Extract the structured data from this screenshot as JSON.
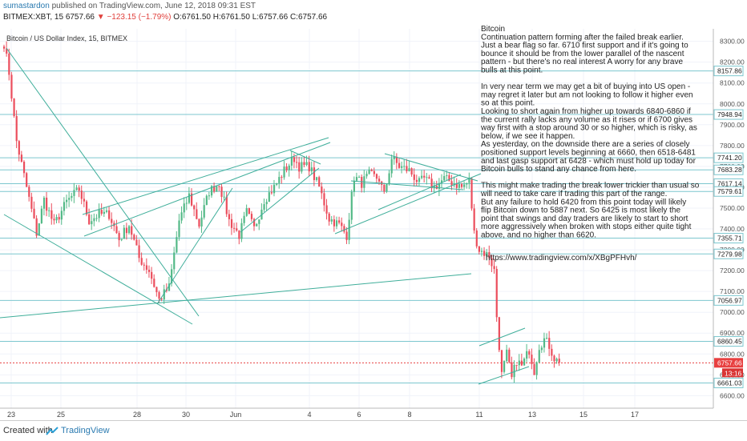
{
  "header": {
    "author": "sumastardon",
    "published": " published on TradingView.com, June 12, 2018 09:31 EST",
    "symbol": "BITMEX:XBT, 15",
    "last": "6757.66",
    "change": "−123.15 (−1.79%)",
    "ohlc": "O:6761.50 H:6761.50 L:6757.66 C:6757.66"
  },
  "footer": {
    "created": "Created with",
    "brand": "TradingView"
  },
  "chart_data": {
    "type": "candlestick",
    "title": "Bitcoin / US Dollar Index, 15, BITMEX",
    "ylim": [
      6540,
      8360
    ],
    "y_ticks": [
      8300,
      8200,
      8100,
      8000,
      7900,
      7800,
      7700,
      7600,
      7500,
      7400,
      7300,
      7200,
      7100,
      7000,
      6900,
      6800,
      6700,
      6600
    ],
    "x_ticks": [
      "23",
      "25",
      "28",
      "30",
      "Jun",
      "4",
      "6",
      "8",
      "11",
      "13",
      "15",
      "17"
    ],
    "horizontal_levels": [
      8157.86,
      7948.94,
      7741.2,
      7683.28,
      7617.14,
      7579.61,
      7355.71,
      7279.98,
      7056.97,
      6860.45,
      6661.03
    ],
    "current_price": 6757.66,
    "countdown": "13:16",
    "path_anchors": [
      [
        0,
        8290
      ],
      [
        2,
        8150
      ],
      [
        5,
        7820
      ],
      [
        9,
        7600
      ],
      [
        13,
        7380
      ],
      [
        16,
        7540
      ],
      [
        20,
        7420
      ],
      [
        25,
        7530
      ],
      [
        30,
        7590
      ],
      [
        34,
        7440
      ],
      [
        38,
        7470
      ],
      [
        42,
        7470
      ],
      [
        46,
        7350
      ],
      [
        50,
        7420
      ],
      [
        54,
        7260
      ],
      [
        58,
        7200
      ],
      [
        62,
        7060
      ],
      [
        66,
        7120
      ],
      [
        70,
        7440
      ],
      [
        74,
        7560
      ],
      [
        78,
        7420
      ],
      [
        82,
        7580
      ],
      [
        86,
        7620
      ],
      [
        90,
        7440
      ],
      [
        94,
        7370
      ],
      [
        97,
        7480
      ],
      [
        100,
        7400
      ],
      [
        104,
        7540
      ],
      [
        108,
        7600
      ],
      [
        112,
        7680
      ],
      [
        116,
        7740
      ],
      [
        118,
        7700
      ],
      [
        122,
        7700
      ],
      [
        126,
        7600
      ],
      [
        130,
        7450
      ],
      [
        134,
        7420
      ],
      [
        137,
        7370
      ],
      [
        140,
        7650
      ],
      [
        143,
        7620
      ],
      [
        146,
        7660
      ],
      [
        150,
        7640
      ],
      [
        152,
        7560
      ],
      [
        155,
        7740
      ],
      [
        158,
        7700
      ],
      [
        162,
        7680
      ],
      [
        166,
        7620
      ],
      [
        168,
        7640
      ],
      [
        172,
        7600
      ],
      [
        176,
        7640
      ],
      [
        180,
        7620
      ],
      [
        183,
        7600
      ],
      [
        186,
        7630
      ],
      [
        188,
        7380
      ],
      [
        190,
        7300
      ],
      [
        194,
        7270
      ],
      [
        196,
        7200
      ],
      [
        197,
        6980
      ],
      [
        199,
        6700
      ],
      [
        201,
        6800
      ],
      [
        203,
        6680
      ],
      [
        205,
        6770
      ],
      [
        207,
        6740
      ],
      [
        210,
        6820
      ],
      [
        212,
        6720
      ],
      [
        214,
        6840
      ],
      [
        216,
        6870
      ],
      [
        218,
        6840
      ],
      [
        220,
        6780
      ],
      [
        222,
        6757.66
      ]
    ],
    "annotations": [
      "Bitcoin",
      "Continuation pattern forming after the failed break earlier.",
      "Just a bear flag so far. 6710 first support and if it's going to",
      "bounce it should be from the lower parallel of the nascent",
      "pattern - but there's no real interest  A worry for any brave",
      "bulls at this point.",
      "",
      "In very near term we may get a bit of buying into US open -",
      "may regret it later but am not looking to follow it higher even",
      "so at this point.",
      "Looking to short again from higher up towards 6840-6860 if",
      "the current rally lacks any volume as it rises or if 6700 gives",
      "way first with a stop around 30 or so higher, which is risky, as",
      "below, if we see it happen.",
      "As yesterday, on the downside there are a series of closely",
      "positioned support levels beginning at 6660, then 6518-6481",
      "and last gasp support at 6428 - which must hold up today for",
      "Bitcoin bulls to stand any chance from here.",
      "",
      "This might make trading the break lower trickier than usual so",
      "will need to take care if trading this part of the range.",
      "But any failure to hold 6420 from this point today will likely",
      "flip Bitcoin down to 5887 next. So 6425 is most likely  the",
      "point that swings and day traders are likely to start to short",
      "more aggressively when broken with stops either quite tight",
      "above, and no higher than 6620.",
      "",
      "https://www.tradingview.com/x/XBgPFHvh/"
    ]
  },
  "colors": {
    "up": "#53b987",
    "down": "#eb4d5c",
    "level": "#7cc7cf",
    "trend": "#3fae9a",
    "price_tag": "#e84040",
    "text": "#222222"
  }
}
